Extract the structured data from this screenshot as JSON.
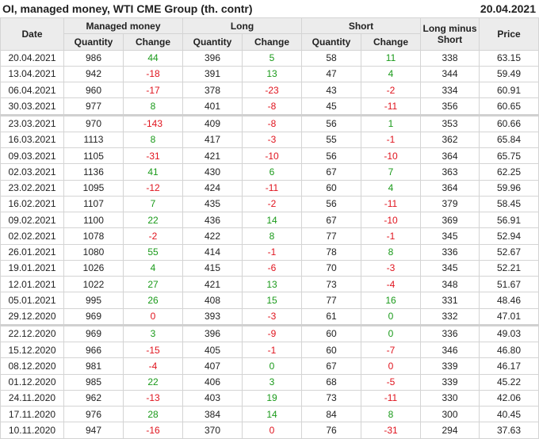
{
  "title": "OI, managed money, WTI CME Group (th. contr)",
  "report_date": "20.04.2021",
  "headers": {
    "date": "Date",
    "managed_money": "Managed money",
    "long": "Long",
    "short": "Short",
    "long_minus_short": "Long minus Short",
    "price": "Price",
    "quantity": "Quantity",
    "change": "Change"
  },
  "colors": {
    "up": "#1a9a1a",
    "down": "#e0141e"
  },
  "rows": [
    [
      "20.04.2021",
      "986",
      "44",
      "396",
      "5",
      "58",
      "11",
      "338",
      "63.15",
      "GGG"
    ],
    [
      "13.04.2021",
      "942",
      "-18",
      "391",
      "13",
      "47",
      "4",
      "344",
      "59.49",
      "RGG"
    ],
    [
      "06.04.2021",
      "960",
      "-17",
      "378",
      "-23",
      "43",
      "-2",
      "334",
      "60.91",
      "RRR"
    ],
    [
      "30.03.2021",
      "977",
      "8",
      "401",
      "-8",
      "45",
      "-11",
      "356",
      "60.65",
      "GRR"
    ],
    [
      "23.03.2021",
      "970",
      "-143",
      "409",
      "-8",
      "56",
      "1",
      "353",
      "60.66",
      "RRG"
    ],
    [
      "16.03.2021",
      "1113",
      "8",
      "417",
      "-3",
      "55",
      "-1",
      "362",
      "65.84",
      "GRR"
    ],
    [
      "09.03.2021",
      "1105",
      "-31",
      "421",
      "-10",
      "56",
      "-10",
      "364",
      "65.75",
      "RRR"
    ],
    [
      "02.03.2021",
      "1136",
      "41",
      "430",
      "6",
      "67",
      "7",
      "363",
      "62.25",
      "GGG"
    ],
    [
      "23.02.2021",
      "1095",
      "-12",
      "424",
      "-11",
      "60",
      "4",
      "364",
      "59.96",
      "RRG"
    ],
    [
      "16.02.2021",
      "1107",
      "7",
      "435",
      "-2",
      "56",
      "-11",
      "379",
      "58.45",
      "GRR"
    ],
    [
      "09.02.2021",
      "1100",
      "22",
      "436",
      "14",
      "67",
      "-10",
      "369",
      "56.91",
      "GGR"
    ],
    [
      "02.02.2021",
      "1078",
      "-2",
      "422",
      "8",
      "77",
      "-1",
      "345",
      "52.94",
      "RGR"
    ],
    [
      "26.01.2021",
      "1080",
      "55",
      "414",
      "-1",
      "78",
      "8",
      "336",
      "52.67",
      "GRG"
    ],
    [
      "19.01.2021",
      "1026",
      "4",
      "415",
      "-6",
      "70",
      "-3",
      "345",
      "52.21",
      "GRR"
    ],
    [
      "12.01.2021",
      "1022",
      "27",
      "421",
      "13",
      "73",
      "-4",
      "348",
      "51.67",
      "GGR"
    ],
    [
      "05.01.2021",
      "995",
      "26",
      "408",
      "15",
      "77",
      "16",
      "331",
      "48.46",
      "GGG"
    ],
    [
      "29.12.2020",
      "969",
      "0",
      "393",
      "-3",
      "61",
      "0",
      "332",
      "47.01",
      "RRG"
    ],
    [
      "22.12.2020",
      "969",
      "3",
      "396",
      "-9",
      "60",
      "0",
      "336",
      "49.03",
      "GRG"
    ],
    [
      "15.12.2020",
      "966",
      "-15",
      "405",
      "-1",
      "60",
      "-7",
      "346",
      "46.80",
      "RRR"
    ],
    [
      "08.12.2020",
      "981",
      "-4",
      "407",
      "0",
      "67",
      "0",
      "339",
      "46.17",
      "RGR"
    ],
    [
      "01.12.2020",
      "985",
      "22",
      "406",
      "3",
      "68",
      "-5",
      "339",
      "45.22",
      "GGR"
    ],
    [
      "24.11.2020",
      "962",
      "-13",
      "403",
      "19",
      "73",
      "-11",
      "330",
      "42.06",
      "RGR"
    ],
    [
      "17.11.2020",
      "976",
      "28",
      "384",
      "14",
      "84",
      "8",
      "300",
      "40.45",
      "GGG"
    ],
    [
      "10.11.2020",
      "947",
      "-16",
      "370",
      "0",
      "76",
      "-31",
      "294",
      "37.63",
      "RRR"
    ]
  ]
}
